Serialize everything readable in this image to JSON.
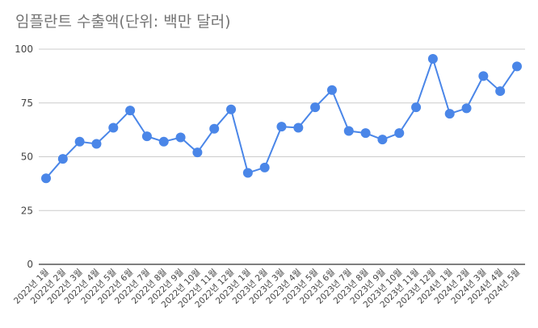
{
  "chart_data": {
    "type": "line",
    "title": "임플란트 수출액(단위: 백만 달러)",
    "xlabel": "",
    "ylabel": "",
    "ylim": [
      0,
      100
    ],
    "yticks": [
      0,
      25,
      50,
      75,
      100
    ],
    "grid": true,
    "legend": "none",
    "color": "#4a86e8",
    "categories": [
      "2022년 1월",
      "2022년 2월",
      "2022년 3월",
      "2022년 4월",
      "2022년 5월",
      "2022년 6월",
      "2022년 7월",
      "2022년 8월",
      "2022년 9월",
      "2022년 10월",
      "2022년 11월",
      "2022년 12월",
      "2023년 1월",
      "2023년 2월",
      "2023년 3월",
      "2023년 4월",
      "2023년 5월",
      "2023년 6월",
      "2023년 7월",
      "2023년 8월",
      "2023년 9월",
      "2023년 10월",
      "2023년 11월",
      "2023년 12월",
      "2024년 1월",
      "2024년 2월",
      "2024년 3월",
      "2024년 4월",
      "2024년 5월"
    ],
    "values": [
      40,
      49,
      57,
      56,
      63.5,
      71.5,
      59.5,
      57,
      59,
      52,
      63,
      72,
      42.5,
      45,
      64,
      63.5,
      73,
      81,
      62,
      61,
      58,
      61,
      73,
      95.5,
      70,
      72.5,
      87.5,
      80.5,
      92
    ]
  }
}
